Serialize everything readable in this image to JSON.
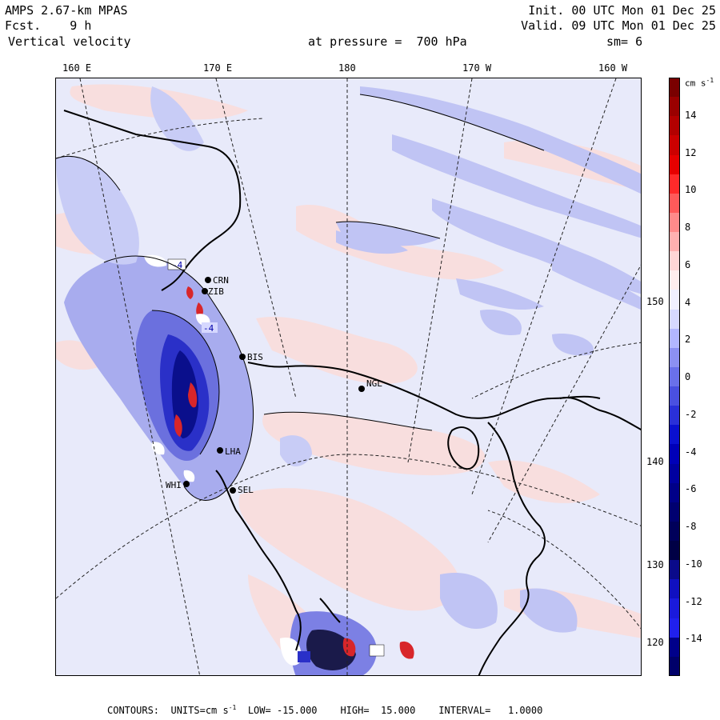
{
  "header": {
    "model": "AMPS 2.67-km MPAS",
    "fcst_label": "Fcst.",
    "fcst_value": "9 h",
    "variable": "Vertical velocity",
    "init": "Init. 00 UTC Mon 01 Dec 25",
    "valid": "Valid. 09 UTC Mon 01 Dec 25",
    "pressure": "at pressure =  700 hPa",
    "smoothing": "sm= 6"
  },
  "top_longitudes": [
    "160 E",
    "170 E",
    "180",
    "170 W",
    "160 W"
  ],
  "right_longitudes": [
    "150 W",
    "140 W",
    "130 W",
    "120 W"
  ],
  "stations": [
    {
      "id": "CRN"
    },
    {
      "id": "ZIB"
    },
    {
      "id": "BIS"
    },
    {
      "id": "NGL"
    },
    {
      "id": "LHA"
    },
    {
      "id": "WHI"
    },
    {
      "id": "SEL"
    }
  ],
  "contour_labels": [
    "-4",
    "-4"
  ],
  "colorbar": {
    "units_main": "cm s",
    "units_exp": "-1",
    "labels": [
      "14",
      "12",
      "10",
      "8",
      "6",
      "4",
      "2",
      "0",
      "-2",
      "-4",
      "-6",
      "-8",
      "-10",
      "-12",
      "-14"
    ],
    "colors": [
      "#7a0000",
      "#9a0000",
      "#b30000",
      "#cc0000",
      "#e60000",
      "#ff2a2a",
      "#ff5a5a",
      "#ff8a8a",
      "#ffb0b0",
      "#ffd6d6",
      "#ffeeee",
      "#f0f0ff",
      "#d6d8ff",
      "#b2b6ff",
      "#8c90f2",
      "#6a70ea",
      "#4a50e0",
      "#2a30d8",
      "#0a10d0",
      "#0000b8",
      "#0000a0",
      "#000088",
      "#000070",
      "#00005a",
      "#000045",
      "#0a0a8a",
      "#1010c0",
      "#1a1adc",
      "#2020ee",
      "#00008a",
      "#00006a"
    ]
  },
  "footer": {
    "contours": "CONTOURS:",
    "units": "UNITS=cm s",
    "units_exp": "-1",
    "low": "LOW= -15.000",
    "high": "HIGH=  15.000",
    "interval": "INTERVAL=   1.0000"
  }
}
